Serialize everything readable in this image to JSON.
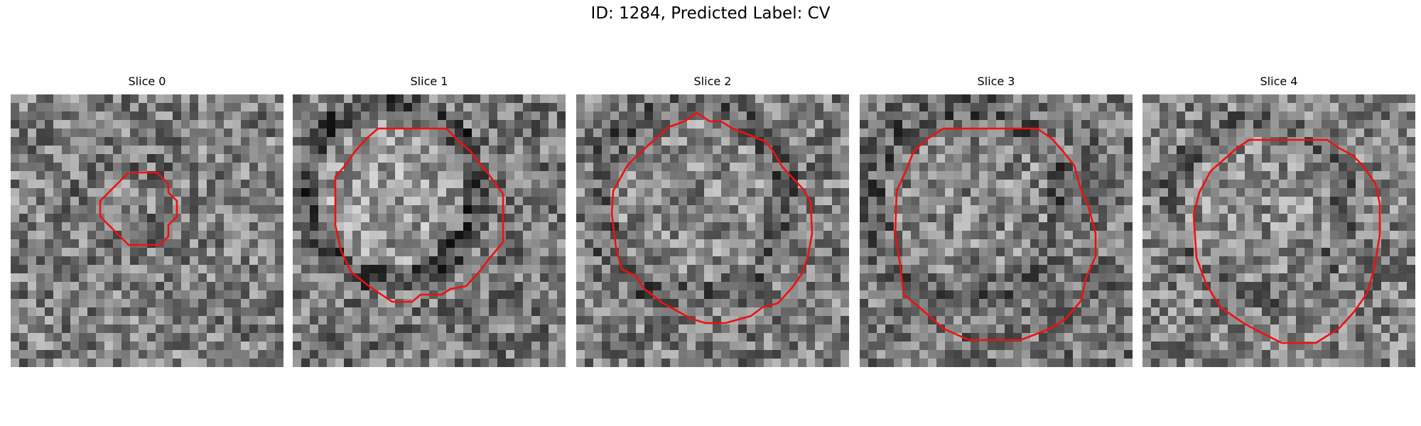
{
  "figure": {
    "title": "ID: 1284, Predicted Label: CV",
    "contour_color": "#ee1111",
    "colormap": "gray"
  },
  "panels": [
    {
      "title": "Slice 0"
    },
    {
      "title": "Slice 1"
    },
    {
      "title": "Slice 2"
    },
    {
      "title": "Slice 3"
    },
    {
      "title": "Slice 4"
    }
  ]
}
